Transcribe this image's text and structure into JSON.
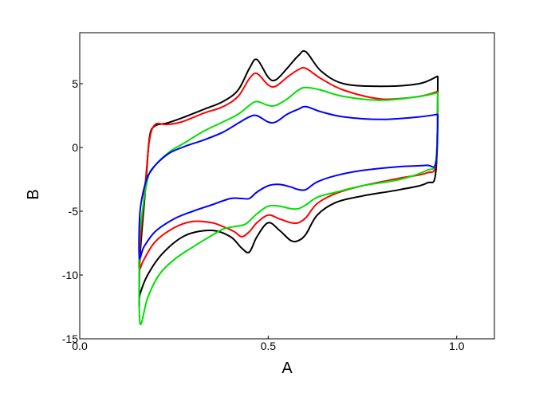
{
  "chart_data": {
    "type": "line",
    "title": "",
    "xlabel": "A",
    "ylabel": "B",
    "xlim": [
      0.0,
      1.1
    ],
    "ylim": [
      -15,
      9
    ],
    "xticks": [
      0.0,
      0.5,
      1.0
    ],
    "xtick_labels": [
      "0.0",
      "0.5",
      "1.0"
    ],
    "yticks": [
      -15,
      -10,
      -5,
      0,
      5
    ],
    "ytick_labels": [
      "-15",
      "-10",
      "-5",
      "0",
      "5"
    ],
    "grid": false,
    "legend": "none",
    "series": [
      {
        "color": "#000000",
        "x": [
          0.95,
          0.9,
          0.8,
          0.7,
          0.64,
          0.6,
          0.58,
          0.55,
          0.52,
          0.5,
          0.47,
          0.45,
          0.42,
          0.38,
          0.33,
          0.27,
          0.23,
          0.2,
          0.185,
          0.175,
          0.16,
          0.158,
          0.16,
          0.18,
          0.22,
          0.28,
          0.35,
          0.4,
          0.43,
          0.45,
          0.47,
          0.5,
          0.53,
          0.56,
          0.58,
          0.6,
          0.63,
          0.68,
          0.75,
          0.85,
          0.92,
          0.945,
          0.95
        ],
        "y": [
          5.6,
          5.0,
          4.8,
          5.0,
          6.0,
          7.5,
          7.2,
          6.2,
          5.3,
          5.5,
          6.9,
          6.2,
          4.5,
          3.6,
          3.0,
          2.3,
          1.9,
          1.7,
          0.8,
          -3.0,
          -8.5,
          -12.3,
          -11.5,
          -10.0,
          -8.3,
          -6.9,
          -6.5,
          -7.0,
          -7.9,
          -8.2,
          -7.0,
          -5.9,
          -6.5,
          -7.3,
          -7.3,
          -6.8,
          -5.3,
          -4.3,
          -3.8,
          -3.3,
          -2.8,
          -1.8,
          5.6
        ]
      },
      {
        "color": "#ff0000",
        "x": [
          0.95,
          0.9,
          0.8,
          0.7,
          0.64,
          0.6,
          0.58,
          0.55,
          0.52,
          0.5,
          0.47,
          0.45,
          0.42,
          0.38,
          0.33,
          0.27,
          0.23,
          0.2,
          0.185,
          0.175,
          0.16,
          0.158,
          0.17,
          0.2,
          0.25,
          0.3,
          0.35,
          0.38,
          0.41,
          0.43,
          0.45,
          0.47,
          0.5,
          0.53,
          0.56,
          0.58,
          0.6,
          0.63,
          0.68,
          0.75,
          0.85,
          0.92,
          0.945,
          0.95
        ],
        "y": [
          4.4,
          4.0,
          3.8,
          4.5,
          5.4,
          6.2,
          6.1,
          5.5,
          4.8,
          4.9,
          5.8,
          5.4,
          4.0,
          3.2,
          2.7,
          2.0,
          1.8,
          1.8,
          0.6,
          -2.5,
          -7.5,
          -9.5,
          -8.8,
          -7.4,
          -6.3,
          -5.8,
          -5.9,
          -6.2,
          -6.6,
          -7.0,
          -6.6,
          -5.9,
          -5.3,
          -5.6,
          -5.9,
          -5.9,
          -5.5,
          -4.4,
          -3.6,
          -3.0,
          -2.4,
          -2.0,
          -1.2,
          4.4
        ]
      },
      {
        "color": "#00e000",
        "x": [
          0.95,
          0.9,
          0.8,
          0.7,
          0.64,
          0.6,
          0.58,
          0.55,
          0.52,
          0.5,
          0.47,
          0.45,
          0.42,
          0.38,
          0.33,
          0.28,
          0.24,
          0.2,
          0.18,
          0.16,
          0.158,
          0.16,
          0.18,
          0.21,
          0.25,
          0.3,
          0.35,
          0.38,
          0.41,
          0.44,
          0.47,
          0.5,
          0.53,
          0.56,
          0.58,
          0.6,
          0.63,
          0.68,
          0.75,
          0.85,
          0.92,
          0.945,
          0.95
        ],
        "y": [
          4.3,
          4.0,
          3.7,
          4.0,
          4.5,
          4.7,
          4.5,
          3.8,
          3.3,
          3.3,
          3.6,
          3.3,
          2.6,
          2.0,
          1.3,
          0.4,
          -0.3,
          -1.4,
          -2.5,
          -6.5,
          -9.0,
          -13.8,
          -11.8,
          -10.0,
          -8.8,
          -7.8,
          -6.9,
          -6.4,
          -6.2,
          -6.0,
          -5.2,
          -4.6,
          -4.6,
          -4.8,
          -4.8,
          -4.5,
          -3.9,
          -3.5,
          -3.0,
          -2.5,
          -1.8,
          -1.0,
          4.3
        ]
      },
      {
        "color": "#0000ff",
        "x": [
          0.95,
          0.9,
          0.8,
          0.7,
          0.64,
          0.6,
          0.58,
          0.55,
          0.52,
          0.5,
          0.47,
          0.45,
          0.42,
          0.38,
          0.33,
          0.28,
          0.24,
          0.21,
          0.19,
          0.175,
          0.16,
          0.158,
          0.17,
          0.2,
          0.25,
          0.3,
          0.35,
          0.4,
          0.43,
          0.45,
          0.47,
          0.5,
          0.53,
          0.56,
          0.58,
          0.6,
          0.63,
          0.68,
          0.75,
          0.85,
          0.92,
          0.945,
          0.95
        ],
        "y": [
          2.6,
          2.4,
          2.2,
          2.4,
          2.8,
          3.2,
          3.0,
          2.6,
          2.0,
          2.0,
          2.5,
          2.4,
          1.9,
          1.2,
          0.6,
          0.1,
          -0.4,
          -1.1,
          -1.8,
          -2.7,
          -5.0,
          -8.6,
          -7.8,
          -6.6,
          -5.6,
          -5.0,
          -4.5,
          -4.0,
          -4.0,
          -4.0,
          -3.5,
          -3.0,
          -2.9,
          -3.1,
          -3.3,
          -3.3,
          -2.7,
          -2.2,
          -1.8,
          -1.5,
          -1.4,
          -1.2,
          2.6
        ]
      }
    ]
  }
}
